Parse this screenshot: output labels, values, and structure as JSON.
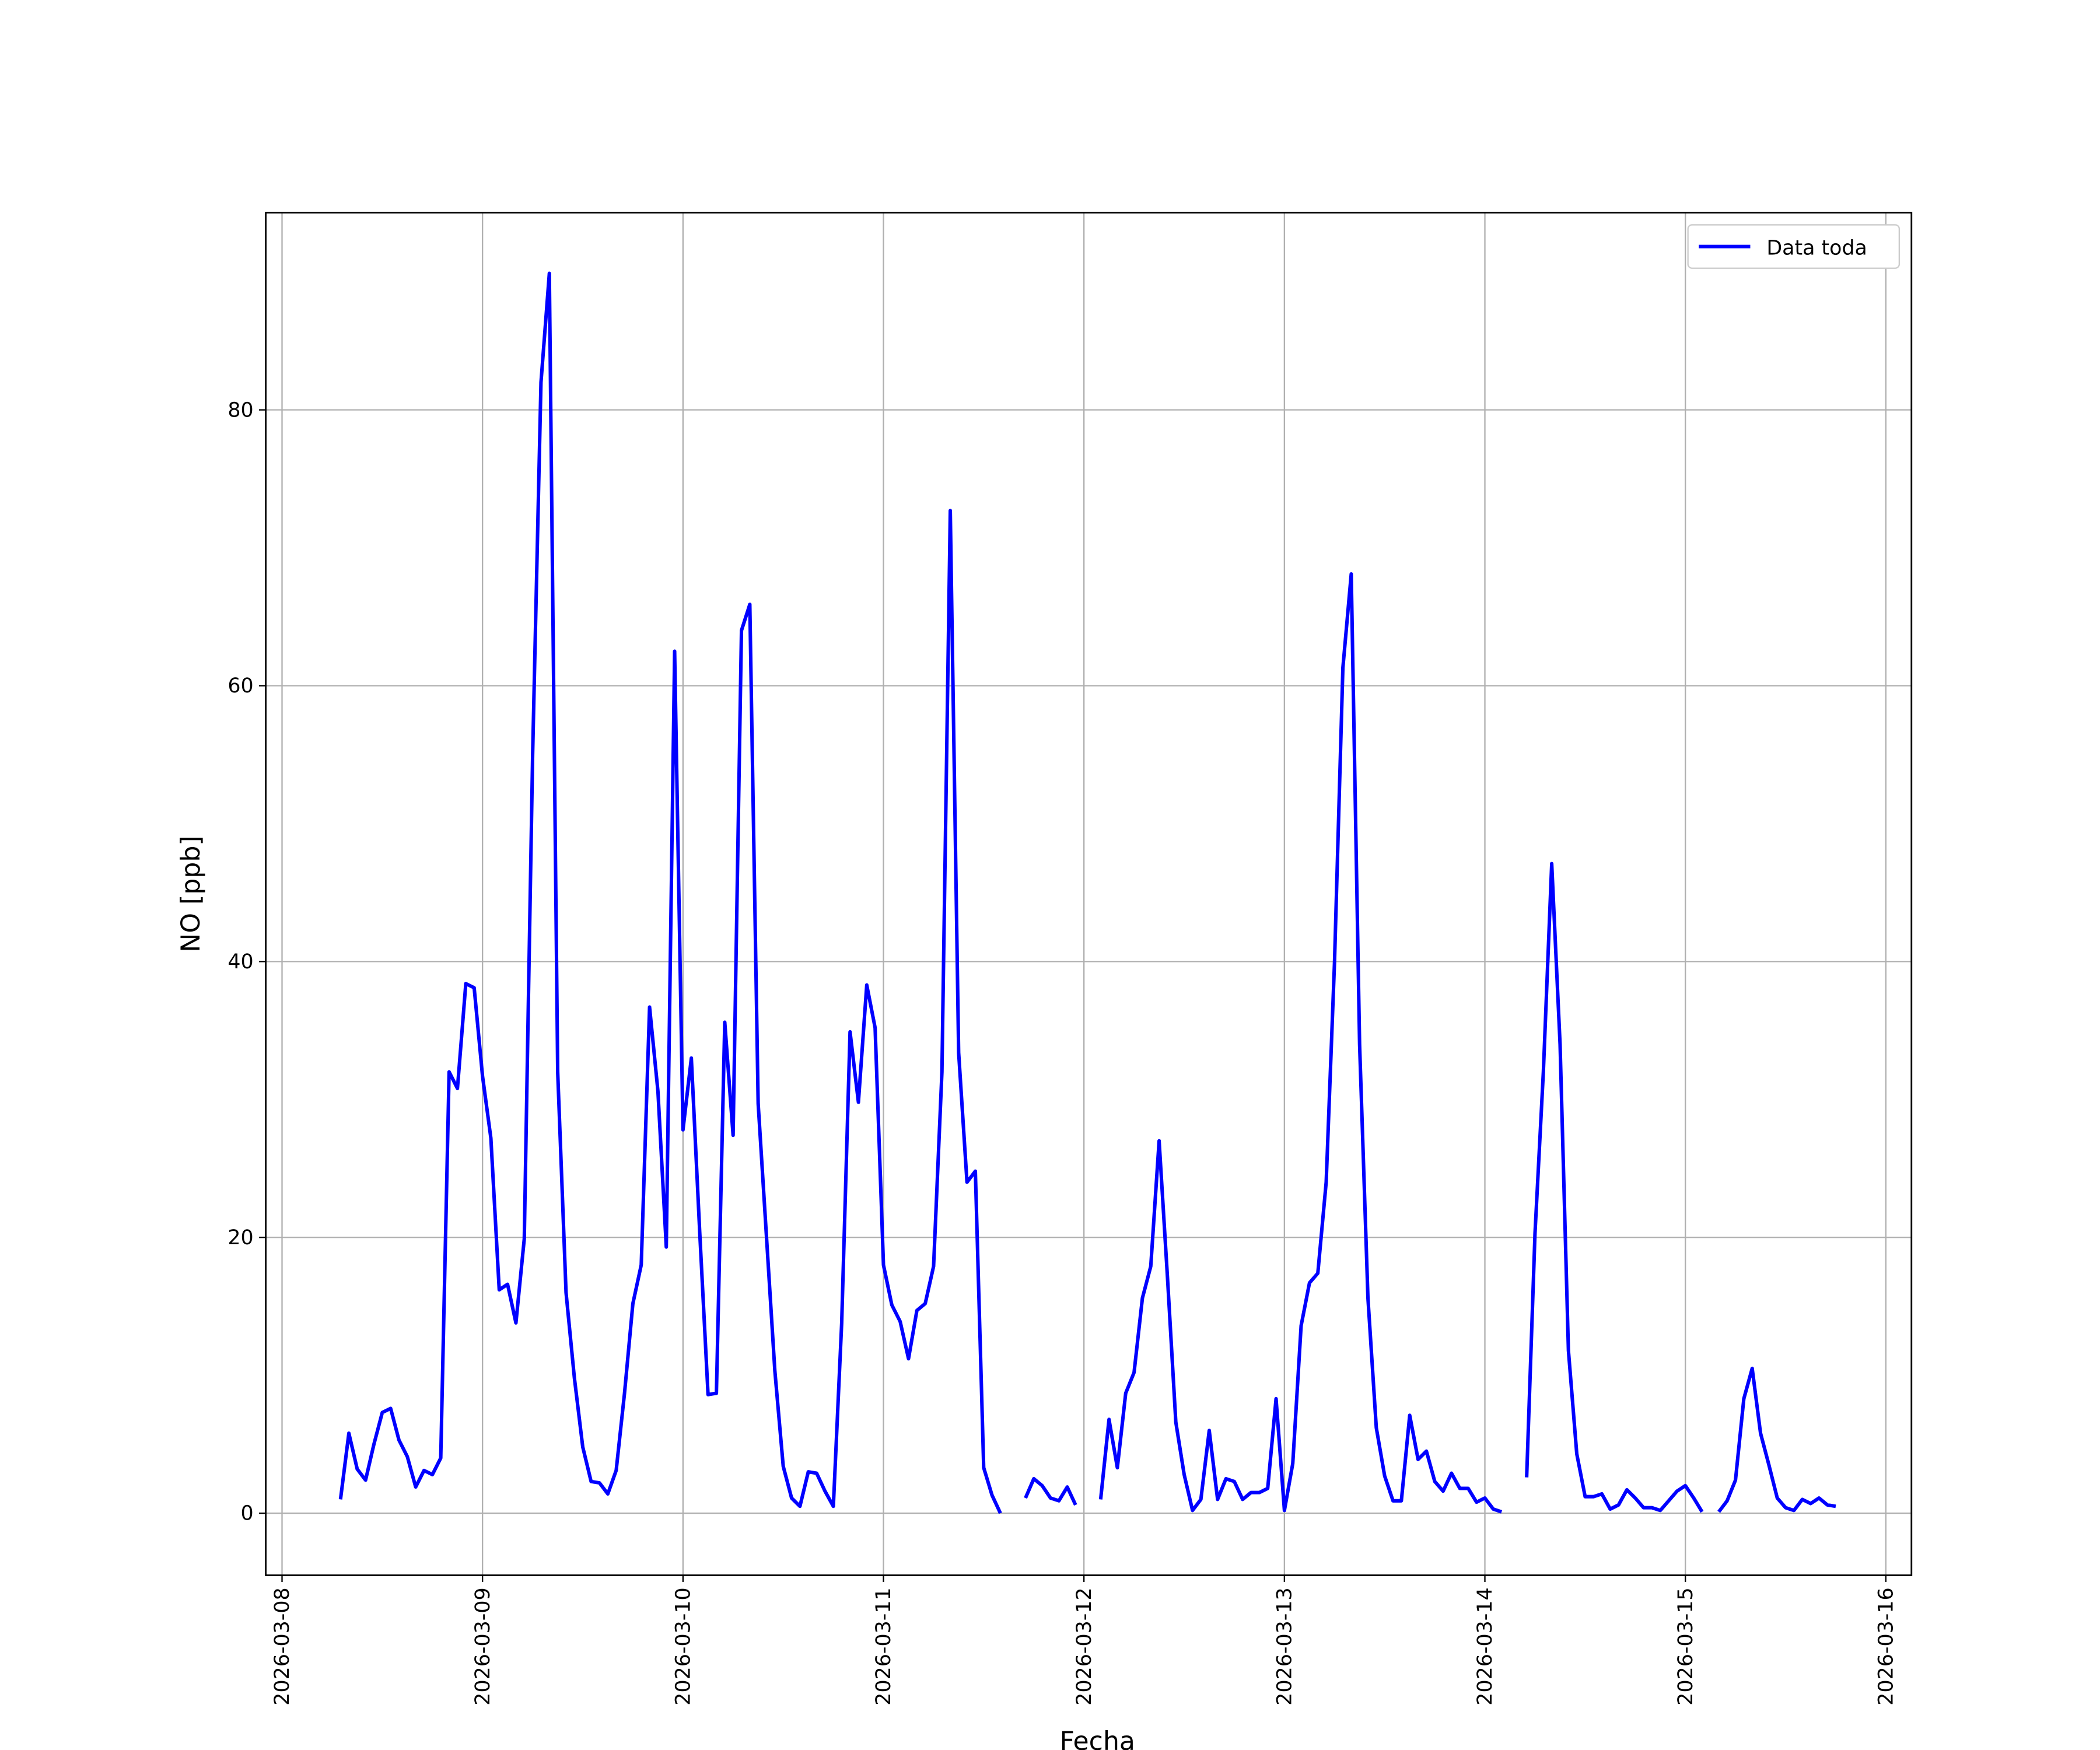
{
  "chart_data": {
    "type": "line",
    "xlabel": "Fecha",
    "ylabel": "NO [ppb]",
    "x": [
      "2026-03-08 07:00",
      "2026-03-08 08:00",
      "2026-03-08 09:00",
      "2026-03-08 10:00",
      "2026-03-08 11:00",
      "2026-03-08 12:00",
      "2026-03-08 13:00",
      "2026-03-08 14:00",
      "2026-03-08 15:00",
      "2026-03-08 16:00",
      "2026-03-08 17:00",
      "2026-03-08 18:00",
      "2026-03-08 19:00",
      "2026-03-08 20:00",
      "2026-03-08 21:00",
      "2026-03-08 22:00",
      "2026-03-08 23:00",
      "2026-03-09 00:00",
      "2026-03-09 01:00",
      "2026-03-09 02:00",
      "2026-03-09 03:00",
      "2026-03-09 04:00",
      "2026-03-09 05:00",
      "2026-03-09 06:00",
      "2026-03-09 07:00",
      "2026-03-09 08:00",
      "2026-03-09 09:00",
      "2026-03-09 10:00",
      "2026-03-09 11:00",
      "2026-03-09 12:00",
      "2026-03-09 13:00",
      "2026-03-09 14:00",
      "2026-03-09 15:00",
      "2026-03-09 16:00",
      "2026-03-09 17:00",
      "2026-03-09 18:00",
      "2026-03-09 19:00",
      "2026-03-09 20:00",
      "2026-03-09 21:00",
      "2026-03-09 22:00",
      "2026-03-09 23:00",
      "2026-03-10 00:00",
      "2026-03-10 01:00",
      "2026-03-10 02:00",
      "2026-03-10 03:00",
      "2026-03-10 04:00",
      "2026-03-10 05:00",
      "2026-03-10 06:00",
      "2026-03-10 07:00",
      "2026-03-10 08:00",
      "2026-03-10 09:00",
      "2026-03-10 10:00",
      "2026-03-10 11:00",
      "2026-03-10 12:00",
      "2026-03-10 13:00",
      "2026-03-10 14:00",
      "2026-03-10 15:00",
      "2026-03-10 16:00",
      "2026-03-10 17:00",
      "2026-03-10 18:00",
      "2026-03-10 19:00",
      "2026-03-10 20:00",
      "2026-03-10 21:00",
      "2026-03-10 22:00",
      "2026-03-10 23:00",
      "2026-03-11 00:00",
      "2026-03-11 01:00",
      "2026-03-11 02:00",
      "2026-03-11 03:00",
      "2026-03-11 04:00",
      "2026-03-11 05:00",
      "2026-03-11 06:00",
      "2026-03-11 07:00",
      "2026-03-11 08:00",
      "2026-03-11 09:00",
      "2026-03-11 10:00",
      "2026-03-11 11:00",
      "2026-03-11 12:00",
      "2026-03-11 13:00",
      "2026-03-11 14:00",
      "2026-03-11 15:00",
      "2026-03-11 17:00",
      "2026-03-11 18:00",
      "2026-03-11 19:00",
      "2026-03-11 20:00",
      "2026-03-11 21:00",
      "2026-03-11 22:00",
      "2026-03-11 23:00",
      "2026-03-12 00:00",
      "2026-03-12 02:00",
      "2026-03-12 03:00",
      "2026-03-12 04:00",
      "2026-03-12 05:00",
      "2026-03-12 06:00",
      "2026-03-12 07:00",
      "2026-03-12 08:00",
      "2026-03-12 09:00",
      "2026-03-12 10:00",
      "2026-03-12 11:00",
      "2026-03-12 12:00",
      "2026-03-12 13:00",
      "2026-03-12 14:00",
      "2026-03-12 15:00",
      "2026-03-12 16:00",
      "2026-03-12 17:00",
      "2026-03-12 18:00",
      "2026-03-12 19:00",
      "2026-03-12 20:00",
      "2026-03-12 21:00",
      "2026-03-12 22:00",
      "2026-03-12 23:00",
      "2026-03-13 00:00",
      "2026-03-13 01:00",
      "2026-03-13 02:00",
      "2026-03-13 03:00",
      "2026-03-13 04:00",
      "2026-03-13 05:00",
      "2026-03-13 06:00",
      "2026-03-13 07:00",
      "2026-03-13 08:00",
      "2026-03-13 09:00",
      "2026-03-13 10:00",
      "2026-03-13 11:00",
      "2026-03-13 12:00",
      "2026-03-13 13:00",
      "2026-03-13 14:00",
      "2026-03-13 15:00",
      "2026-03-13 16:00",
      "2026-03-13 17:00",
      "2026-03-13 18:00",
      "2026-03-13 19:00",
      "2026-03-13 20:00",
      "2026-03-13 21:00",
      "2026-03-13 22:00",
      "2026-03-13 23:00",
      "2026-03-14 00:00",
      "2026-03-14 01:00",
      "2026-03-14 02:00",
      "2026-03-14 03:00",
      "2026-03-14 05:00",
      "2026-03-14 06:00",
      "2026-03-14 07:00",
      "2026-03-14 08:00",
      "2026-03-14 09:00",
      "2026-03-14 10:00",
      "2026-03-14 11:00",
      "2026-03-14 12:00",
      "2026-03-14 13:00",
      "2026-03-14 14:00",
      "2026-03-14 15:00",
      "2026-03-14 16:00",
      "2026-03-14 17:00",
      "2026-03-14 18:00",
      "2026-03-14 19:00",
      "2026-03-14 20:00",
      "2026-03-14 21:00",
      "2026-03-14 22:00",
      "2026-03-14 23:00",
      "2026-03-15 00:00",
      "2026-03-15 01:00",
      "2026-03-15 02:00",
      "2026-03-15 03:00",
      "2026-03-15 04:00",
      "2026-03-15 05:00",
      "2026-03-15 06:00",
      "2026-03-15 07:00",
      "2026-03-15 08:00",
      "2026-03-15 09:00",
      "2026-03-15 10:00",
      "2026-03-15 11:00",
      "2026-03-15 12:00",
      "2026-03-15 13:00",
      "2026-03-15 14:00",
      "2026-03-15 15:00",
      "2026-03-15 16:00",
      "2026-03-15 17:00",
      "2026-03-15 18:00"
    ],
    "series": [
      {
        "name": "Data toda",
        "color": "#0000ff",
        "values": [
          1,
          5.8,
          3.2,
          2.4,
          5,
          7.3,
          7.6,
          5.3,
          4.1,
          1.9,
          3.1,
          2.8,
          4,
          32,
          30.8,
          38.4,
          38.1,
          31.7,
          27.2,
          16.2,
          16.6,
          13.8,
          19.9,
          55,
          82,
          89.9,
          32,
          16,
          9.8,
          4.8,
          2.3,
          2.2,
          1.4,
          3.1,
          8.7,
          15.2,
          18,
          36.7,
          30.6,
          19.3,
          62.5,
          27.8,
          33,
          20.4,
          8.6,
          8.7,
          35.6,
          27.4,
          64,
          65.9,
          29.7,
          20,
          10.3,
          3.4,
          1.1,
          0.5,
          3,
          2.9,
          1.6,
          0.5,
          13.8,
          34.9,
          29.8,
          38.3,
          35.2,
          18,
          15.1,
          13.9,
          11.2,
          14.7,
          15.2,
          17.9,
          32,
          72.7,
          33.4,
          24,
          24.8,
          3.3,
          1.3,
          0,
          null,
          1.1,
          2.5,
          2,
          1.1,
          0.9,
          1.9,
          0.6,
          null,
          1,
          6.8,
          3.3,
          8.7,
          10.2,
          15.6,
          17.9,
          27,
          17.1,
          6.6,
          2.8,
          0.2,
          1,
          6,
          1,
          2.5,
          2.3,
          1,
          1.5,
          1.5,
          1.8,
          8.3,
          0.2,
          3.6,
          13.6,
          16.7,
          17.4,
          24,
          40,
          61.3,
          68.1,
          34,
          15.6,
          6.2,
          2.7,
          0.9,
          0.9,
          7.1,
          3.9,
          4.5,
          2.3,
          1.6,
          2.9,
          1.8,
          1.8,
          0.8,
          1.1,
          0.3,
          0.1,
          null,
          2.6,
          20.3,
          32,
          47.1,
          34,
          11.8,
          4.3,
          1.2,
          1.2,
          1.4,
          0.3,
          0.6,
          1.7,
          1.1,
          0.4,
          0.4,
          0.2,
          0.9,
          1.6,
          2,
          1.1,
          0.1,
          null,
          0.1,
          0.9,
          2.4,
          8.3,
          10.5,
          5.8,
          3.5,
          1.1,
          0.4,
          0.2,
          1,
          0.7,
          1.1,
          0.6,
          0.5
        ]
      }
    ],
    "xlim": [
      "2026-03-07 22:03",
      "2026-03-16 03:04"
    ],
    "xticks": [
      "2026-03-08",
      "2026-03-09",
      "2026-03-10",
      "2026-03-11",
      "2026-03-12",
      "2026-03-13",
      "2026-03-14",
      "2026-03-15",
      "2026-03-16"
    ],
    "ylim": [
      -4.5,
      94.3
    ],
    "yticks": [
      0,
      20,
      40,
      60,
      80
    ],
    "grid": true,
    "legend": "upper right"
  }
}
